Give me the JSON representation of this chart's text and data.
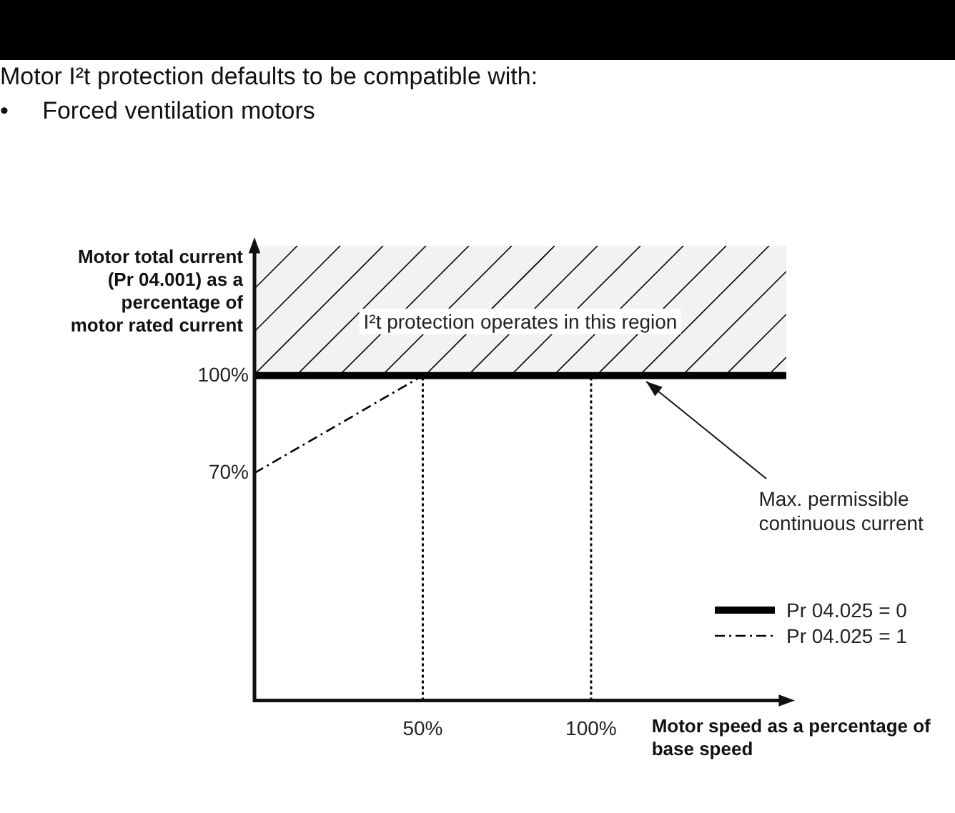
{
  "chart_data": {
    "type": "line",
    "title": "Motor I²t protection defaults to be compatible with:",
    "subtitle": "•     Forced ventilation motors",
    "xlabel": "Motor speed as a percentage of base speed",
    "ylabel": "Motor total current (Pr 04.001) as a percentage of motor rated current",
    "xlim": [
      0,
      158
    ],
    "ylim": [
      0,
      140
    ],
    "xticks": [
      {
        "value": 50,
        "label": "50%"
      },
      {
        "value": 100,
        "label": "100%"
      }
    ],
    "yticks": [
      {
        "value": 70,
        "label": "70%"
      },
      {
        "value": 100,
        "label": "100%"
      }
    ],
    "series": [
      {
        "name": "Pr 04.025 = 0",
        "color": "#000000",
        "x": [
          0,
          158
        ],
        "values": [
          100,
          100
        ],
        "line_style": "solid"
      },
      {
        "name": "Pr 04.025 = 1",
        "color": "#000000",
        "x": [
          0,
          25,
          50
        ],
        "values": [
          70,
          85,
          100
        ],
        "line_style": "dashdot"
      }
    ],
    "bands": [
      {
        "axis": "y",
        "from": 100,
        "to": 140,
        "label": "I²t protection operates in this region",
        "color": "#000000"
      }
    ],
    "ref_lines": [
      {
        "axis": "x",
        "value": 50,
        "color": "#000000",
        "line_style": "dotted"
      },
      {
        "axis": "x",
        "value": 100,
        "color": "#000000",
        "line_style": "dotted"
      }
    ],
    "annotations": [
      {
        "text": "Max. permissible continuous current",
        "x": 115,
        "y": 100
      }
    ],
    "legend": "bottom right",
    "grid": false,
    "marker": "none"
  }
}
